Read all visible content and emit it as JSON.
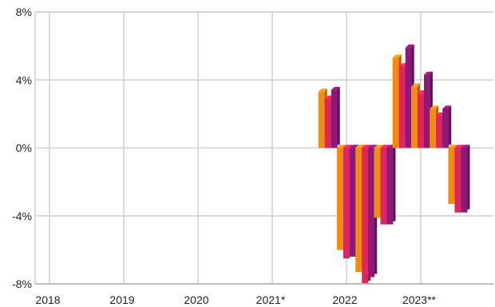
{
  "chart_data": {
    "type": "bar",
    "style": "3d-clustered",
    "grid": true,
    "ylim": [
      -8,
      8
    ],
    "y_ticks": [
      "8%",
      "4%",
      "0%",
      "-4%",
      "-8%"
    ],
    "y_tick_values": [
      8,
      4,
      0,
      -4,
      -8
    ],
    "x_ticks": [
      "2018",
      "2019",
      "2020",
      "2021*",
      "2022",
      "2023**"
    ],
    "x_tick_values": [
      2018,
      2019,
      2020,
      2021,
      2022,
      2023
    ],
    "xlim": [
      2018,
      2023.85
    ],
    "series_colors": [
      "#f28c0f",
      "#e0245e",
      "#8a1a7a"
    ],
    "series": [
      {
        "values": [
          3.3,
          -6.0,
          -7.3,
          -4.1,
          5.3,
          3.6,
          2.3,
          -3.3
        ]
      },
      {
        "values": [
          2.9,
          -6.5,
          -8.0,
          -4.5,
          4.8,
          3.2,
          1.9,
          -3.8
        ]
      },
      {
        "values": [
          3.4,
          -6.4,
          -7.6,
          -4.5,
          5.9,
          4.3,
          2.3,
          -3.8
        ]
      }
    ],
    "periods": [
      2021.75,
      2022.0,
      2022.25,
      2022.5,
      2022.75,
      2023.0,
      2023.25,
      2023.5
    ]
  }
}
